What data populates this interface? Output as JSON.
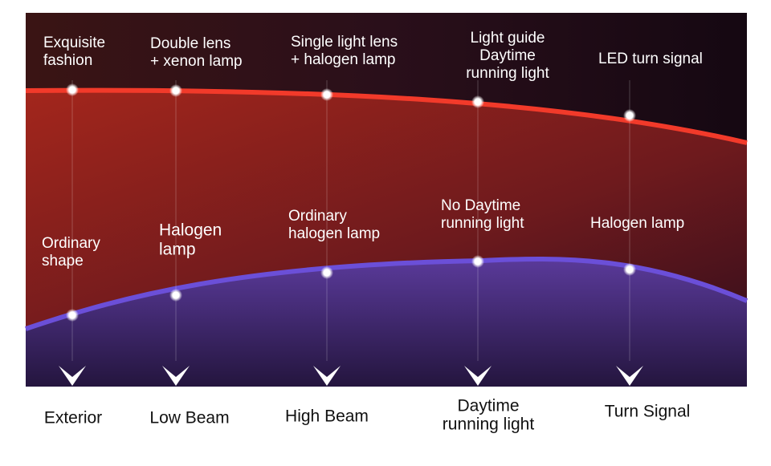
{
  "columns": [
    {
      "name": [
        "Exterior"
      ],
      "premium": [
        "Exquisite",
        "fashion"
      ],
      "ordinary": [
        "Ordinary",
        "shape"
      ]
    },
    {
      "name": [
        "Low Beam"
      ],
      "premium": [
        "Double lens",
        "+ xenon lamp"
      ],
      "ordinary": [
        "Halogen",
        "lamp"
      ]
    },
    {
      "name": [
        "High Beam"
      ],
      "premium": [
        "Single light lens",
        "+ halogen lamp"
      ],
      "ordinary": [
        "Ordinary",
        "halogen lamp"
      ]
    },
    {
      "name": [
        "Daytime",
        "running light"
      ],
      "premium": [
        "Light guide",
        "Daytime",
        "running light"
      ],
      "ordinary": [
        "No Daytime",
        "running light"
      ]
    },
    {
      "name": [
        "Turn Signal"
      ],
      "premium": [
        "LED turn signal"
      ],
      "ordinary": [
        "Halogen lamp"
      ]
    }
  ]
}
